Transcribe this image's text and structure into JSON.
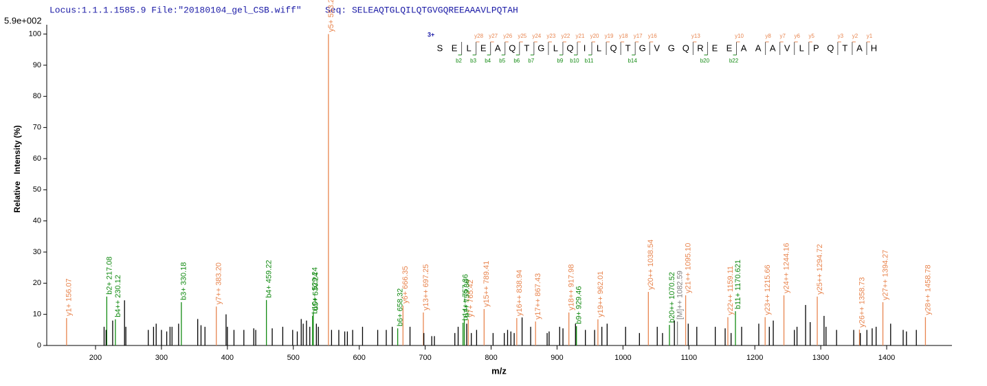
{
  "chart_data": {
    "type": "stem",
    "locus_file": "Locus:1.1.1.1585.9 File:\"20180104_gel_CSB.wiff\"",
    "seq_label": "Seq:",
    "seq": "SELEAQTGLQILQTGVGQREEAAAVLPQTAH",
    "scale_label": "5.9e+002",
    "xlabel": "m/z",
    "ylabel": "Relative   Intensity (%)",
    "xlim": [
      126,
      1499
    ],
    "ylim": [
      0,
      103
    ],
    "xticks": [
      200,
      300,
      400,
      500,
      600,
      700,
      800,
      900,
      1000,
      1100,
      1200,
      1300,
      1400
    ],
    "yticks": [
      0,
      10,
      20,
      30,
      40,
      50,
      60,
      70,
      80,
      90,
      100
    ],
    "series": [
      {
        "color": "#e8854f",
        "x": [
          156.07,
          553.28,
          383.2,
          666.35,
          697.25,
          765.42,
          789.41,
          838.94,
          867.43,
          917.98,
          962.01,
          1038.54,
          1095.1,
          1159.11,
          1215.66,
          1244.16,
          1294.72,
          1358.73,
          1394.27,
          1458.78
        ],
        "values": [
          8.8,
          100,
          12.5,
          12.8,
          10.6,
          8.4,
          11.7,
          8.8,
          7.7,
          10.6,
          8.4,
          17.2,
          16.1,
          9.1,
          9.1,
          16.1,
          15.7,
          5.1,
          13.9,
          9.1
        ],
        "labels": [
          "y1+ 156.07",
          "y5+ 553.28",
          "y7++ 383.20",
          "y6+ 666.35",
          "y13++ 697.25",
          "y7+ 765.42",
          "y15++ 789.41",
          "y16++ 838.94",
          "y17++ 867.43",
          "y18++ 917.98",
          "y19++ 962.01",
          "y20++ 1038.54",
          "y21++ 1095.10",
          "y22++ 1159.11",
          "y23++ 1215.66",
          "y24++ 1244.16",
          "y25++ 1294.72",
          "y26++ 1358.73",
          "y27++ 1394.27",
          "y28++ 1458.78"
        ]
      },
      {
        "color": "#118a11",
        "x": [
          217.08,
          230.12,
          330.18,
          459.22,
          529.24,
          530.24,
          658.32,
          757.36,
          759.36,
          929.46,
          1070.52,
          1170.621
        ],
        "values": [
          15.7,
          8.4,
          13.9,
          14.6,
          9.5,
          10.6,
          5.5,
          7.3,
          8.4,
          6.2,
          6.6,
          11
        ],
        "labels": [
          "b2+ 217.08",
          "b4++ 230.12",
          "b3+ 330.18",
          "b4+ 459.22",
          "b10++ 529.24",
          "b5+ 530.24",
          "b6+ 658.32",
          "b14++ 757.36",
          "b7+ 759.36",
          "b9+ 929.46",
          "b20++ 1070.52",
          "b11+ 1170.621"
        ]
      },
      {
        "color": "#808080",
        "x": [
          1082.59
        ],
        "values": [
          7.7
        ],
        "labels": [
          "[M]++ 1082.59"
        ]
      },
      {
        "color": "#000000",
        "x": [
          213,
          216,
          226,
          244,
          246,
          280,
          288,
          292,
          300,
          308,
          313,
          316,
          326,
          355,
          360,
          366,
          398,
          400,
          410,
          425,
          440,
          443,
          468,
          484,
          499,
          506,
          512,
          515,
          520,
          525,
          535,
          538,
          558,
          569,
          578,
          582,
          590,
          605,
          628,
          641,
          650,
          677,
          698,
          710,
          714,
          745,
          750,
          763,
          770,
          778,
          803,
          820,
          825,
          830,
          835,
          847,
          860,
          885,
          888,
          904,
          909,
          928,
          943,
          957,
          968,
          976,
          1004,
          1025,
          1052,
          1060,
          1078,
          1099,
          1112,
          1140,
          1155,
          1164,
          1180,
          1206,
          1222,
          1228,
          1260,
          1264,
          1277,
          1284,
          1305,
          1308,
          1324,
          1350,
          1360,
          1370,
          1378,
          1384,
          1406,
          1425,
          1430,
          1445
        ],
        "values": [
          6,
          5,
          8,
          14.5,
          6,
          5,
          6,
          7,
          5,
          4.5,
          6,
          6,
          7,
          8.5,
          6.5,
          6,
          10,
          6,
          5,
          5,
          5.5,
          5,
          5.5,
          6,
          5,
          4.5,
          8.5,
          7,
          8,
          6,
          7,
          6,
          5,
          5,
          4.5,
          4.5,
          5,
          6,
          5,
          5,
          6,
          6,
          4,
          3,
          3,
          4,
          6,
          7,
          4,
          5,
          4,
          4,
          5,
          4.5,
          4,
          9,
          6,
          4,
          4.5,
          6,
          5.5,
          7,
          5,
          5,
          6,
          7,
          6,
          4,
          6,
          4,
          8,
          7,
          6,
          6,
          5.5,
          4,
          6,
          7,
          6,
          8,
          5,
          6,
          13,
          7.5,
          9.5,
          6,
          5,
          5,
          4,
          5,
          5.5,
          6,
          7,
          5,
          4.5,
          5
        ]
      }
    ],
    "peptide": {
      "charge": "3+",
      "residues": [
        "S",
        "E",
        "L",
        "E",
        "A",
        "Q",
        "T",
        "G",
        "L",
        "Q",
        "I",
        "L",
        "Q",
        "T",
        "G",
        "V",
        "G",
        "Q",
        "R",
        "E",
        "E",
        "A",
        "A",
        "A",
        "V",
        "L",
        "P",
        "Q",
        "T",
        "A",
        "H"
      ],
      "y_marks": [
        null,
        null,
        "y28",
        "y27",
        "y26",
        "y25",
        "y24",
        "y23",
        "y22",
        "y21",
        "y20",
        "y19",
        "y18",
        "y17",
        "y16",
        null,
        null,
        "y13",
        null,
        null,
        "y10",
        null,
        "y8",
        "y7",
        "y6",
        "y5",
        null,
        "y3",
        "y2",
        "y1"
      ],
      "b_marks": [
        null,
        "b2",
        "b3",
        "b4",
        "b5",
        "b6",
        "b7",
        null,
        "b9",
        "b10",
        "b11",
        null,
        null,
        "b14",
        null,
        null,
        null,
        null,
        "b20",
        null,
        "b22",
        null,
        null,
        null,
        null,
        null,
        null,
        null,
        null,
        null
      ]
    }
  }
}
